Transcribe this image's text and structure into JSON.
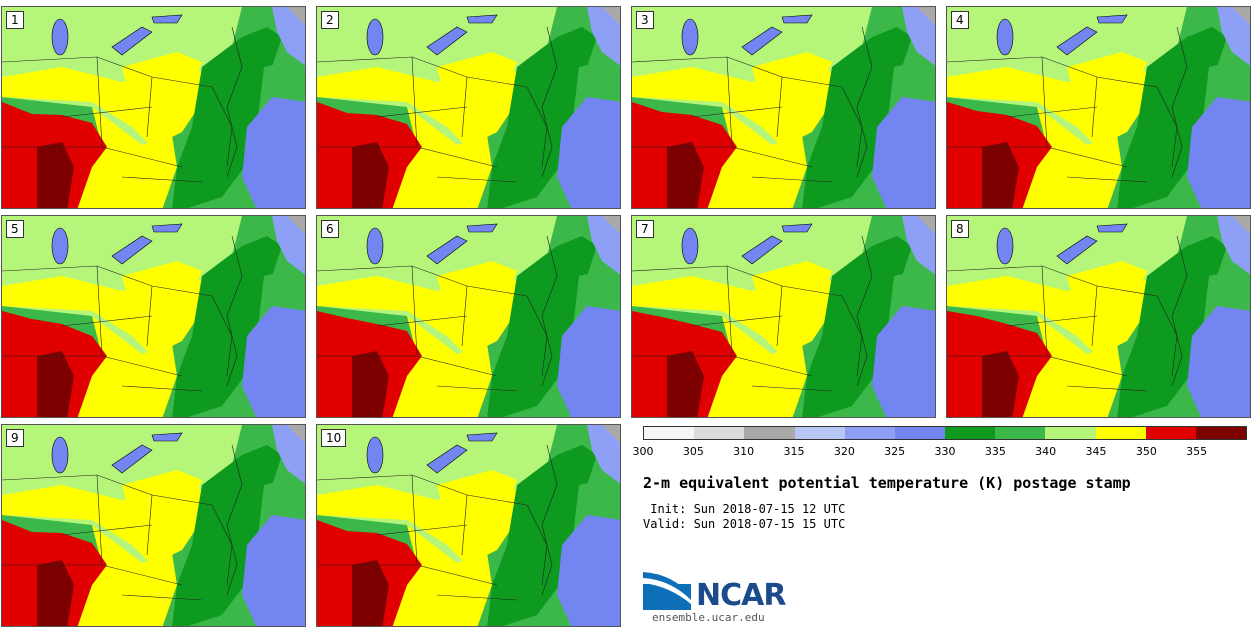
{
  "panels": [
    "1",
    "2",
    "3",
    "4",
    "5",
    "6",
    "7",
    "8",
    "9",
    "10"
  ],
  "colorbar": {
    "colors": [
      "#f5f5f5",
      "#dcdcdc",
      "#a9a9a9",
      "#b8c6f5",
      "#8da0f5",
      "#7385f0",
      "#0e9a1e",
      "#3cb84a",
      "#b4f57a",
      "#ffff00",
      "#e00000",
      "#7d0000"
    ],
    "ticks": [
      "300",
      "305",
      "310",
      "315",
      "320",
      "325",
      "330",
      "335",
      "340",
      "345",
      "350",
      "355"
    ]
  },
  "title": "2-m equivalent potential temperature (K) postage stamp",
  "init": " Init: Sun 2018-07-15 12 UTC",
  "valid": "Valid: Sun 2018-07-15 15 UTC",
  "logo": {
    "name": "NCAR",
    "url": "ensemble.ucar.edu"
  }
}
